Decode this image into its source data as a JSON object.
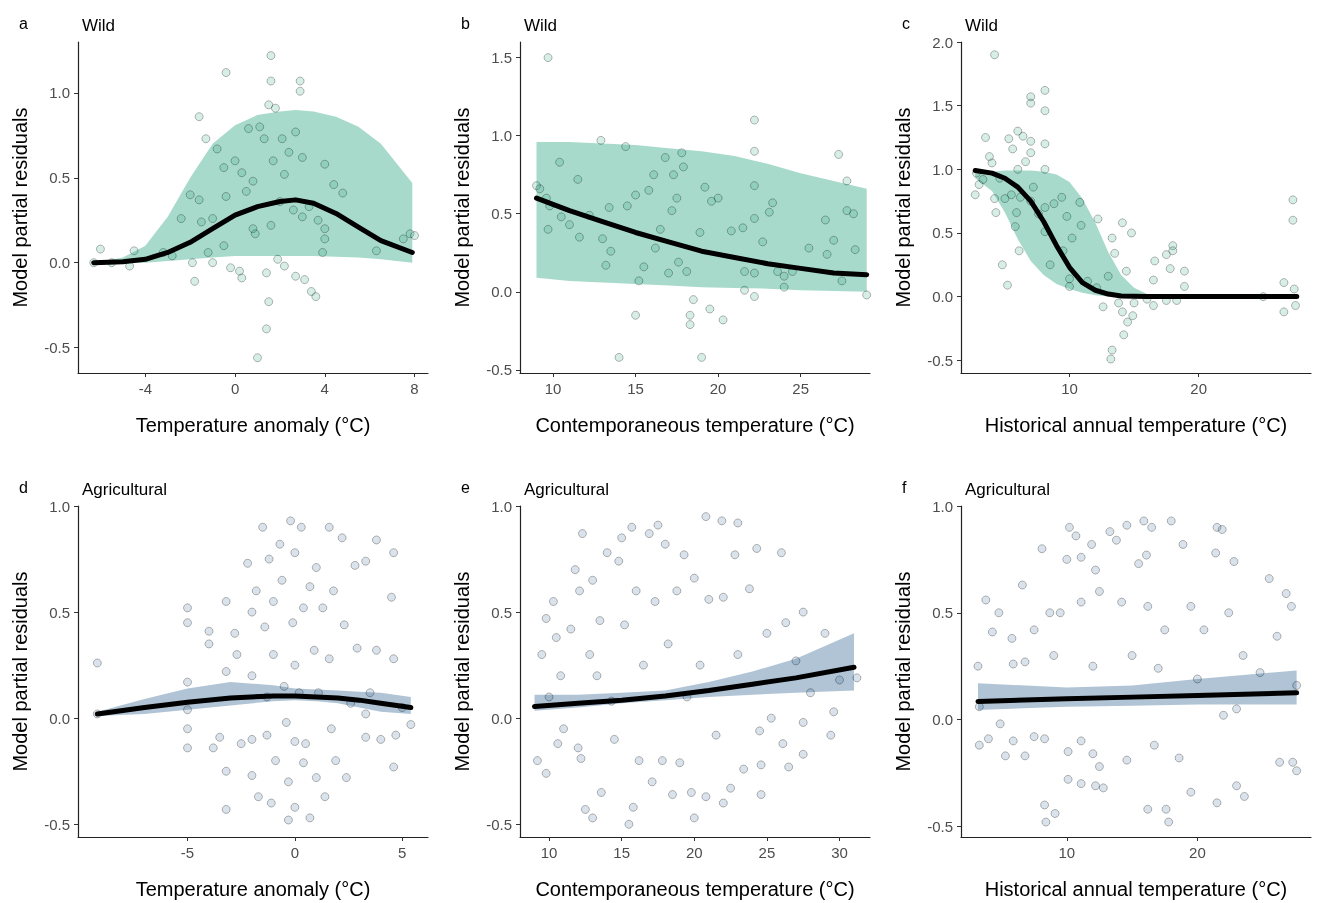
{
  "chart_data": [
    {
      "type": "scatter",
      "title": "a",
      "subtitle": "Wild",
      "xlabel": "Temperature anomaly (°C)",
      "ylabel": "Model partial residuals",
      "xlim": [
        -7,
        8.6
      ],
      "ylim": [
        -0.65,
        1.3
      ],
      "xticks": [
        -4,
        0,
        4,
        8
      ],
      "yticks": [
        -0.5,
        {
          "value": 0,
          "label": "0.0"
        },
        0.5,
        {
          "value": 1,
          "label": "1.0"
        }
      ],
      "grid": false,
      "series": [
        {
          "type": "scatter",
          "marker": "circle",
          "color": "#1b9e77",
          "x": [
            -6.3,
            -6.0,
            -5.5,
            -4.7,
            -4.5,
            -3.2,
            -2.8,
            -2.4,
            -2.0,
            -1.9,
            -1.8,
            -1.6,
            -1.6,
            -1.5,
            -1.3,
            -1.2,
            -1.0,
            -1.0,
            -0.8,
            -0.5,
            -0.5,
            -0.4,
            -0.4,
            -0.2,
            0,
            0.2,
            0.3,
            0.3,
            0.5,
            0.6,
            0.8,
            0.8,
            0.9,
            1.0,
            1.1,
            1.3,
            1.4,
            1.4,
            1.5,
            1.5,
            1.6,
            1.6,
            1.6,
            1.7,
            1.8,
            1.9,
            2.0,
            2.1,
            2.2,
            2.2,
            2.4,
            2.6,
            2.7,
            2.7,
            2.9,
            2.9,
            3.0,
            3.0,
            3.1,
            3.3,
            3.4,
            3.6,
            3.7,
            3.9,
            4.0,
            4.0,
            4.0,
            4.4,
            4.8,
            6.3,
            7.5,
            7.8,
            8.0
          ],
          "values": [
            0.0,
            0.08,
            0.0,
            -0.02,
            0.07,
            0.06,
            0.04,
            0.26,
            0.4,
            0.0,
            -0.11,
            0.86,
            0.37,
            0.24,
            0.73,
            0.06,
            0.0,
            0.26,
            0.67,
            0.56,
            0.1,
            1.12,
            0.39,
            -0.03,
            0.6,
            -0.05,
            -0.09,
            0.53,
            0.42,
            0.79,
            0.48,
            0.2,
            0.17,
            -0.56,
            0.8,
            0.73,
            -0.06,
            -0.39,
            -0.23,
            0.93,
            1.22,
            1.07,
            0.22,
            0.6,
            0.91,
            0.02,
            0.36,
            0.73,
            -0.02,
            0.52,
            0.65,
            0.31,
            -0.08,
            0.77,
            1.07,
            1.01,
            0.62,
            0.27,
            -0.1,
            0.33,
            -0.17,
            -0.2,
            0.25,
            0.06,
            0.58,
            0.2,
            0.14,
            0.46,
            0.41,
            0.07,
            0.14,
            0.17,
            0.16
          ]
        },
        {
          "type": "line",
          "color": "#000000",
          "x": [
            -6.3,
            -5,
            -4,
            -3,
            -2,
            -1,
            0,
            1,
            2,
            2.7,
            3.5,
            4.5,
            5.5,
            6.5,
            7.9
          ],
          "values": [
            0,
            0.005,
            0.02,
            0.06,
            0.12,
            0.2,
            0.28,
            0.33,
            0.36,
            0.37,
            0.35,
            0.29,
            0.21,
            0.13,
            0.06
          ],
          "lower": [
            0,
            0,
            0,
            0.01,
            0.02,
            0.03,
            0.04,
            0.04,
            0.04,
            0.04,
            0.04,
            0.035,
            0.03,
            0.02,
            0.0
          ],
          "upper": [
            0.0,
            0.03,
            0.1,
            0.27,
            0.5,
            0.7,
            0.81,
            0.87,
            0.89,
            0.9,
            0.89,
            0.86,
            0.8,
            0.7,
            0.47
          ]
        }
      ]
    },
    {
      "type": "scatter",
      "title": "b",
      "subtitle": "Wild",
      "xlabel": "Contemporaneous temperature (°C)",
      "ylabel": "Model partial residuals",
      "xlim": [
        8,
        29.2
      ],
      "ylim": [
        -0.52,
        1.6
      ],
      "xticks": [
        10,
        15,
        20,
        25
      ],
      "yticks": [
        -0.5,
        {
          "value": 0,
          "label": "0.0"
        },
        0.5,
        {
          "value": 1,
          "label": "1.0"
        },
        1.5
      ],
      "grid": false,
      "series": [
        {
          "type": "scatter",
          "marker": "circle",
          "color": "#1b9e77",
          "x": [
            9.0,
            9.2,
            9.6,
            9.7,
            9.7,
            9.8,
            10.4,
            10.5,
            11.0,
            11.5,
            11.6,
            12.2,
            12.9,
            13.0,
            13.2,
            13.4,
            13.5,
            14.0,
            14.4,
            14.5,
            15.0,
            15.0,
            15.2,
            15.5,
            15.8,
            16.1,
            16.2,
            16.5,
            16.8,
            17.0,
            17.2,
            17.3,
            17.5,
            17.6,
            17.8,
            17.9,
            18.1,
            18.3,
            18.3,
            18.5,
            18.9,
            19.0,
            19.2,
            19.5,
            19.6,
            20.0,
            20.3,
            20.8,
            21.5,
            21.6,
            21.6,
            22.2,
            22.2,
            22.2,
            22.2,
            22.2,
            22.2,
            22.7,
            23.1,
            23.3,
            23.6,
            24.0,
            24.0,
            24.5,
            25.5,
            26.5,
            26.6,
            27.0,
            27.3,
            27.5,
            27.8,
            27.8,
            28.2,
            28.3,
            29.0
          ],
          "values": [
            0.68,
            0.66,
            0.6,
            0.4,
            1.5,
            0.55,
            0.83,
            0.48,
            0.43,
            0.72,
            0.35,
            0.49,
            0.97,
            0.34,
            0.17,
            0.54,
            0.26,
            -0.42,
            0.93,
            0.55,
            0.62,
            -0.15,
            0.07,
            0.16,
            0.65,
            0.75,
            0.28,
            0.4,
            0.86,
            0.12,
            0.52,
            0.75,
            0.6,
            0.19,
            0.89,
            0.8,
            0.13,
            -0.21,
            -0.15,
            -0.05,
            0.38,
            -0.42,
            0.67,
            -0.11,
            0.58,
            0.6,
            -0.18,
            0.39,
            0.41,
            0.01,
            0.13,
            1.1,
            0.9,
            0.68,
            0.47,
            -0.03,
            0.12,
            0.32,
            0.51,
            0.57,
            0.13,
            0.03,
            0.1,
            0.13,
            0.28,
            0.46,
            0.24,
            0.33,
            0.88,
            0.07,
            0.71,
            0.52,
            0.5,
            0.27,
            -0.02
          ]
        },
        {
          "type": "line",
          "color": "#000000",
          "x": [
            9,
            11,
            13,
            15,
            17,
            19,
            21,
            23,
            25,
            27,
            29
          ],
          "values": [
            0.6,
            0.52,
            0.45,
            0.38,
            0.32,
            0.26,
            0.22,
            0.18,
            0.15,
            0.12,
            0.11
          ],
          "lower": [
            0.09,
            0.07,
            0.06,
            0.05,
            0.04,
            0.03,
            0.025,
            0.02,
            0.01,
            0.005,
            0.0
          ],
          "upper": [
            0.96,
            0.96,
            0.95,
            0.94,
            0.92,
            0.9,
            0.87,
            0.82,
            0.76,
            0.71,
            0.66
          ]
        }
      ]
    },
    {
      "type": "scatter",
      "title": "c",
      "subtitle": "Wild",
      "xlabel": "Historical annual temperature (°C)",
      "ylabel": "Model partial residuals",
      "xlim": [
        1.6,
        28.7
      ],
      "ylim": [
        -0.6,
        2.0
      ],
      "xticks": [
        10,
        20
      ],
      "yticks": [
        -0.5,
        {
          "value": 0,
          "label": "0.0"
        },
        0.5,
        {
          "value": 1,
          "label": "1.0"
        },
        1.5,
        {
          "value": 2,
          "label": "2.0"
        }
      ],
      "grid": false,
      "series": [
        {
          "type": "scatter",
          "marker": "circle",
          "color": "#1b9e77",
          "x": [
            2.7,
            2.8,
            3.0,
            3.3,
            3.5,
            3.8,
            4.0,
            4.2,
            4.3,
            4.2,
            4.6,
            4.8,
            5.0,
            5.2,
            5.3,
            5.5,
            5.6,
            5.8,
            5.9,
            6.0,
            6.0,
            6.1,
            6.2,
            6.4,
            6.6,
            7.0,
            7.0,
            7.0,
            7.0,
            7.0,
            7.2,
            7.6,
            8.1,
            8.1,
            8.1,
            8.1,
            8.1,
            8.1,
            8.5,
            8.8,
            9.4,
            9.5,
            9.8,
            10.0,
            10.0,
            10.2,
            10.8,
            10.9,
            11.4,
            12.1,
            12.2,
            12.6,
            13.0,
            13.3,
            13.5,
            13.3,
            13.2,
            13.8,
            14.1,
            14.2,
            14.1,
            14.4,
            14.5,
            14.8,
            14.9,
            15.0,
            16.0,
            16.5,
            16.6,
            16.5,
            17.5,
            17.5,
            17.8,
            18.0,
            18.0,
            18.3,
            18.9,
            18.9,
            25.0,
            26.6,
            26.6,
            27.3,
            27.3,
            27.4,
            27.5
          ],
          "values": [
            0.8,
            0.97,
            0.88,
            0.92,
            1.25,
            1.1,
            1.05,
            0.77,
            0.66,
            1.9,
            0.93,
            0.25,
            0.77,
            0.09,
            1.24,
            0.8,
            1.16,
            0.55,
            0.66,
            1.0,
            1.3,
            0.36,
            0.78,
            1.26,
            1.06,
            1.57,
            1.52,
            1.22,
            1.13,
            0.75,
            0.86,
            0.65,
            1.62,
            1.46,
            1.2,
            1.0,
            0.7,
            0.51,
            0.25,
            0.73,
            0.78,
            0.36,
            0.63,
            0.14,
            0.08,
            0.46,
            0.74,
            0.56,
            0.12,
            0.07,
            0.61,
            -0.08,
            0.16,
            0.46,
            0.34,
            -0.42,
            -0.49,
            -0.05,
            0.58,
            -0.3,
            -0.12,
            0.2,
            -0.2,
            0.5,
            -0.15,
            -0.05,
            -0.02,
            0.13,
            0.28,
            -0.07,
            0.33,
            -0.03,
            0.22,
            0.4,
            0.36,
            -0.03,
            0.2,
            0.08,
            0.0,
            0.11,
            -0.12,
            0.76,
            0.6,
            0.06,
            -0.07
          ]
        },
        {
          "type": "line",
          "color": "#000000",
          "x": [
            2.7,
            4,
            5,
            6,
            7,
            8,
            9,
            10,
            11,
            12,
            13,
            14,
            15,
            16,
            17,
            20,
            27.6
          ],
          "values": [
            0.99,
            0.97,
            0.93,
            0.86,
            0.75,
            0.59,
            0.4,
            0.23,
            0.11,
            0.05,
            0.02,
            0.005,
            0.002,
            0,
            0,
            0,
            0
          ],
          "lower": [
            0.93,
            0.83,
            0.66,
            0.45,
            0.28,
            0.17,
            0.1,
            0.06,
            0.03,
            0.01,
            0.0,
            0,
            0,
            0,
            0,
            null,
            null
          ],
          "upper": [
            0.97,
            0.98,
            0.99,
            0.99,
            0.99,
            0.98,
            0.96,
            0.9,
            0.77,
            0.58,
            0.35,
            0.17,
            0.07,
            0.02,
            0.0,
            null,
            null
          ]
        }
      ]
    },
    {
      "type": "scatter",
      "title": "d",
      "subtitle": "Agricultural",
      "xlabel": "Temperature anomaly (°C)",
      "ylabel": "Model partial residuals",
      "xlim": [
        -10.1,
        6.2
      ],
      "ylim": [
        -0.56,
        1.0
      ],
      "xticks": [
        -5,
        0,
        5
      ],
      "yticks": [
        -0.5,
        {
          "value": 0,
          "label": "0.0"
        },
        0.5,
        {
          "value": 1,
          "label": "1.0"
        }
      ],
      "grid": false,
      "series": [
        {
          "type": "scatter",
          "marker": "circle",
          "color": "#2f6390",
          "x": [
            -9.2,
            -9.2,
            -5,
            -5,
            -5,
            -5,
            -5,
            -5,
            -4,
            -4,
            -3.8,
            -3.5,
            -3.2,
            -3.2,
            -3.2,
            -3.2,
            -2.8,
            -2.7,
            -2.5,
            -2.2,
            -2.0,
            -2.0,
            -2.0,
            -2.0,
            -1.8,
            -1.7,
            -1.5,
            -1.4,
            -1.3,
            -1.3,
            -1.2,
            -1.1,
            -1.0,
            -1.0,
            -0.9,
            -0.7,
            -0.6,
            -0.5,
            -0.4,
            -0.3,
            -0.3,
            -0.2,
            -0.1,
            0,
            0,
            0,
            0,
            0.2,
            0.3,
            0.4,
            0.4,
            0.5,
            0.7,
            0.7,
            0.9,
            1.0,
            1.0,
            1.1,
            1.3,
            1.4,
            1.6,
            1.6,
            1.7,
            1.8,
            1.9,
            2.2,
            2.3,
            2.4,
            2.6,
            2.8,
            2.9,
            3.3,
            3.3,
            3.3,
            3.5,
            3.8,
            3.8,
            4.0,
            4.5,
            4.6,
            4.6,
            4.6,
            4.7,
            5.0,
            5.4
          ],
          "values": [
            0.26,
            0.02,
            0.52,
            0.45,
            0.17,
            0.04,
            -0.05,
            -0.14,
            0.41,
            0.35,
            -0.14,
            -0.09,
            0.55,
            0.22,
            -0.25,
            -0.43,
            0.4,
            0.3,
            -0.12,
            0.73,
            0.5,
            0.2,
            -0.1,
            -0.27,
            0.6,
            -0.37,
            0.9,
            0.43,
            0.1,
            -0.08,
            0.75,
            -0.4,
            0.55,
            0.3,
            -0.2,
            0.82,
            0.65,
            0.15,
            -0.02,
            -0.3,
            -0.48,
            0.93,
            0.45,
            0.78,
            0.25,
            -0.11,
            -0.42,
            0.12,
            0.9,
            0.52,
            -0.21,
            -0.12,
            0.62,
            -0.47,
            0.32,
            0.71,
            -0.28,
            0.12,
            0.52,
            -0.37,
            0.9,
            0.28,
            -0.05,
            0.6,
            -0.2,
            0.85,
            0.44,
            -0.28,
            0.07,
            0.72,
            0.33,
            0.74,
            0.02,
            -0.09,
            0.12,
            0.32,
            0.84,
            -0.1,
            0.57,
            0.78,
            0.28,
            -0.23,
            -0.08,
            0.05,
            -0.03
          ]
        },
        {
          "type": "line",
          "color": "#000000",
          "x": [
            -9.2,
            -7,
            -5,
            -3,
            -1,
            0,
            1,
            2,
            3,
            4,
            5.4
          ],
          "values": [
            0.02,
            0.05,
            0.075,
            0.095,
            0.105,
            0.105,
            0.1,
            0.095,
            0.085,
            0.07,
            0.05
          ],
          "lower": [
            0.01,
            0.02,
            0.04,
            0.06,
            0.08,
            0.085,
            0.08,
            0.07,
            0.05,
            0.03,
            0.02
          ],
          "upper": [
            0.03,
            0.09,
            0.14,
            0.17,
            0.155,
            0.14,
            0.135,
            0.13,
            0.125,
            0.12,
            0.1
          ]
        }
      ]
    },
    {
      "type": "scatter",
      "title": "e",
      "subtitle": "Agricultural",
      "xlabel": "Contemporaneous temperature (°C)",
      "ylabel": "Model partial residuals",
      "xlim": [
        8,
        32.1
      ],
      "ylim": [
        -0.56,
        1.0
      ],
      "xticks": [
        10,
        15,
        20,
        25,
        30
      ],
      "yticks": [
        -0.5,
        {
          "value": 0,
          "label": "0.0"
        },
        0.5,
        {
          "value": 1,
          "label": "1.0"
        }
      ],
      "grid": false,
      "series": [
        {
          "type": "scatter",
          "marker": "circle",
          "color": "#2f6390",
          "x": [
            9.2,
            9.5,
            9.8,
            9.8,
            10.0,
            10.3,
            10.5,
            10.6,
            10.8,
            11.0,
            11.5,
            11.8,
            12.0,
            12.1,
            12.2,
            12.3,
            12.5,
            12.8,
            13.0,
            13.0,
            13.3,
            13.5,
            13.6,
            14.0,
            14.3,
            14.5,
            14.8,
            15.0,
            15.2,
            15.5,
            15.7,
            15.8,
            16.0,
            16.2,
            16.5,
            16.9,
            17.1,
            17.3,
            17.5,
            17.8,
            18.0,
            18.2,
            18.5,
            18.8,
            19.0,
            19.3,
            19.5,
            19.8,
            20.0,
            20.0,
            20.4,
            20.8,
            20.8,
            21.0,
            21.5,
            21.9,
            22.0,
            22.0,
            22.5,
            22.8,
            23.0,
            23.0,
            23.4,
            23.8,
            24.3,
            24.5,
            24.6,
            24.6,
            25.0,
            25.3,
            26.0,
            26.1,
            26.3,
            26.5,
            27.0,
            27.5,
            27.5,
            27.5,
            28.0,
            29.0,
            29.4,
            29.6,
            30.0,
            31.2
          ],
          "values": [
            -0.2,
            0.3,
            0.47,
            -0.26,
            0.1,
            0.55,
            0.38,
            -0.12,
            0.2,
            -0.05,
            0.42,
            0.7,
            -0.14,
            0.6,
            -0.19,
            0.87,
            -0.43,
            0.3,
            0.65,
            -0.47,
            0.2,
            0.46,
            -0.35,
            0.78,
            0.08,
            -0.1,
            0.74,
            0.85,
            0.44,
            -0.5,
            0.9,
            -0.42,
            0.6,
            -0.2,
            0.25,
            0.87,
            -0.3,
            0.55,
            0.91,
            -0.2,
            0.82,
            0.35,
            -0.36,
            0.6,
            -0.21,
            0.77,
            0.1,
            -0.35,
            0.66,
            -0.47,
            0.25,
            0.95,
            -0.37,
            0.56,
            -0.08,
            0.93,
            -0.4,
            0.57,
            -0.33,
            0.77,
            0.92,
            0.3,
            -0.24,
            0.61,
            0.8,
            -0.06,
            -0.22,
            -0.36,
            0.4,
            0.0,
            0.78,
            -0.12,
            0.45,
            -0.23,
            0.27,
            0.5,
            -0.02,
            -0.17,
            0.12,
            0.4,
            -0.08,
            0.03,
            0.18,
            0.19
          ]
        },
        {
          "type": "line",
          "color": "#000000",
          "x": [
            9,
            12,
            15,
            18,
            21,
            24,
            27,
            31
          ],
          "values": [
            0.055,
            0.07,
            0.085,
            0.105,
            0.13,
            0.16,
            0.19,
            0.24
          ],
          "lower": [
            0.035,
            0.05,
            0.07,
            0.085,
            0.1,
            0.11,
            0.12,
            0.13
          ],
          "upper": [
            0.11,
            0.11,
            0.12,
            0.13,
            0.17,
            0.22,
            0.28,
            0.4
          ]
        }
      ]
    },
    {
      "type": "scatter",
      "title": "f",
      "subtitle": "Agricultural",
      "xlabel": "Historical annual temperature (°C)",
      "ylabel": "Model partial residuals",
      "xlim": [
        1.9,
        28.7
      ],
      "ylim": [
        -0.55,
        1.0
      ],
      "xticks": [
        10,
        20
      ],
      "yticks": [
        -0.5,
        {
          "value": 0,
          "label": "0.0"
        },
        0.5,
        {
          "value": 1,
          "label": "1.0"
        }
      ],
      "grid": false,
      "series": [
        {
          "type": "scatter",
          "marker": "circle",
          "color": "#2f6390",
          "x": [
            3.2,
            3.3,
            3.3,
            3.8,
            4.0,
            4.3,
            4.8,
            4.9,
            5.3,
            5.8,
            5.9,
            5.9,
            6.6,
            6.8,
            6.8,
            7.5,
            7.5,
            8.1,
            8.3,
            8.3,
            8.4,
            8.7,
            9.0,
            9.1,
            9.5,
            10.0,
            10.1,
            10.1,
            10.2,
            10.7,
            11.1,
            11.1,
            11.1,
            11.1,
            11.9,
            12.0,
            12.0,
            12.2,
            12.2,
            12.5,
            12.5,
            12.8,
            13.3,
            13.8,
            14.2,
            14.6,
            14.6,
            15.0,
            15.5,
            15.9,
            16.1,
            16.2,
            16.2,
            16.5,
            16.7,
            17.0,
            17.5,
            17.6,
            17.8,
            18.0,
            18.6,
            18.9,
            19.5,
            19.5,
            20.0,
            20.5,
            21.4,
            21.5,
            21.5,
            21.9,
            22.0,
            22.4,
            22.8,
            23.0,
            23.0,
            23.5,
            23.6,
            24.8,
            25.5,
            26.1,
            26.3,
            26.8,
            27.2,
            27.3,
            27.6,
            27.6
          ],
          "values": [
            0.25,
            0.06,
            -0.12,
            0.56,
            -0.09,
            0.41,
            0.5,
            -0.02,
            -0.17,
            0.38,
            0.26,
            -0.1,
            0.63,
            0.27,
            -0.17,
            0.42,
            -0.08,
            0.8,
            -0.09,
            -0.4,
            -0.48,
            0.5,
            0.3,
            -0.44,
            0.5,
            0.75,
            -0.15,
            -0.28,
            0.9,
            0.86,
            0.76,
            0.55,
            -0.1,
            -0.3,
            0.82,
            0.25,
            -0.16,
            0.7,
            -0.31,
            0.6,
            -0.22,
            -0.32,
            0.88,
            0.84,
            0.55,
            0.91,
            -0.19,
            0.3,
            0.73,
            0.93,
            0.77,
            0.53,
            -0.42,
            0.9,
            -0.12,
            0.24,
            0.42,
            -0.42,
            -0.48,
            0.93,
            -0.18,
            0.82,
            -0.34,
            0.53,
            0.19,
            0.42,
            0.78,
            0.9,
            -0.39,
            0.89,
            0.02,
            0.5,
            0.74,
            -0.31,
            0.05,
            0.3,
            -0.36,
            0.22,
            0.66,
            0.39,
            -0.2,
            0.59,
            0.53,
            -0.2,
            -0.24,
            0.16
          ]
        },
        {
          "type": "line",
          "color": "#000000",
          "x": [
            3.2,
            10,
            15,
            20,
            27.6
          ],
          "values": [
            0.085,
            0.097,
            0.105,
            0.113,
            0.125
          ],
          "lower": [
            0.045,
            0.06,
            0.065,
            0.07,
            0.07
          ],
          "upper": [
            0.17,
            0.15,
            0.16,
            0.19,
            0.23
          ]
        }
      ]
    }
  ]
}
